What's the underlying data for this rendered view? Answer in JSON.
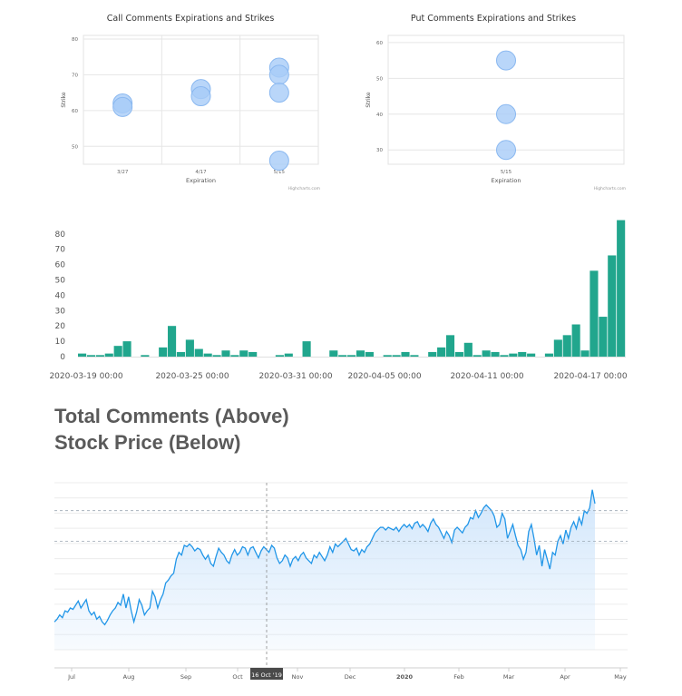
{
  "headings": {
    "line1": "Total Comments (Above)",
    "line2": "Stock Price (Below)"
  },
  "colors": {
    "bubble_fill": "#a8ccf7",
    "bubble_stroke": "#8ab8f0",
    "bar": "#21a68d",
    "price_line": "#2196e8",
    "price_area": "#cfe5fb",
    "grid": "#e6e6e6"
  },
  "chart_data": [
    {
      "type": "scatter",
      "title": "Call Comments Expirations and Strikes",
      "xlabel": "Expiration",
      "ylabel": "Strike",
      "categories": [
        "3/27",
        "4/17",
        "5/15"
      ],
      "yticks": [
        50,
        60,
        70,
        80
      ],
      "ylim": [
        45,
        81
      ],
      "credit": "Highcharts.com",
      "points": [
        {
          "x": "3/27",
          "y": 62
        },
        {
          "x": "3/27",
          "y": 61
        },
        {
          "x": "4/17",
          "y": 66
        },
        {
          "x": "4/17",
          "y": 64
        },
        {
          "x": "5/15",
          "y": 72
        },
        {
          "x": "5/15",
          "y": 70
        },
        {
          "x": "5/15",
          "y": 65
        },
        {
          "x": "5/15",
          "y": 46
        }
      ]
    },
    {
      "type": "scatter",
      "title": "Put Comments Expirations and Strikes",
      "xlabel": "Expiration",
      "ylabel": "Strike",
      "categories": [
        "5/15"
      ],
      "yticks": [
        30,
        40,
        50,
        60
      ],
      "ylim": [
        26,
        62
      ],
      "credit": "Highcharts.com",
      "points": [
        {
          "x": "5/15",
          "y": 55
        },
        {
          "x": "5/15",
          "y": 40
        },
        {
          "x": "5/15",
          "y": 30
        }
      ]
    },
    {
      "type": "bar",
      "title": "",
      "yticks": [
        0,
        10,
        20,
        30,
        40,
        50,
        60,
        70,
        80
      ],
      "ylim": [
        0,
        90
      ],
      "xticks": [
        "2020-03-19 00:00",
        "2020-03-25 00:00",
        "2020-03-31 00:00",
        "2020-04-05 00:00",
        "2020-04-11 00:00",
        "2020-04-17 00:00"
      ],
      "values": [
        2,
        1,
        1,
        2,
        7,
        10,
        0,
        1,
        0,
        6,
        20,
        3,
        11,
        5,
        2,
        1,
        4,
        1,
        4,
        3,
        0,
        0,
        1,
        2,
        0,
        10,
        0,
        0,
        4,
        1,
        1,
        4,
        3,
        0,
        1,
        1,
        3,
        1,
        0,
        3,
        6,
        14,
        3,
        9,
        1,
        4,
        3,
        1,
        2,
        3,
        2,
        0,
        2,
        11,
        14,
        21,
        4,
        56,
        26,
        66,
        89
      ]
    },
    {
      "type": "area",
      "title": "",
      "xticks": [
        "Jul",
        "Aug",
        "Sep",
        "Oct",
        "16 Oct '19",
        "Nov",
        "Dec",
        "2020",
        "Feb",
        "Mar",
        "Apr",
        "May"
      ],
      "crosshair_label": "16 Oct '19",
      "values": [
        50,
        52,
        55,
        53,
        58,
        57,
        60,
        59,
        62,
        65,
        60,
        63,
        66,
        58,
        55,
        57,
        52,
        54,
        50,
        48,
        51,
        55,
        58,
        60,
        64,
        62,
        70,
        60,
        68,
        58,
        50,
        57,
        66,
        62,
        55,
        58,
        60,
        72,
        68,
        60,
        66,
        70,
        78,
        80,
        83,
        85,
        95,
        100,
        98,
        105,
        104,
        106,
        104,
        101,
        103,
        102,
        98,
        95,
        98,
        92,
        90,
        97,
        103,
        100,
        98,
        94,
        92,
        98,
        102,
        98,
        100,
        104,
        103,
        98,
        103,
        104,
        100,
        96,
        101,
        104,
        102,
        100,
        105,
        103,
        96,
        92,
        94,
        98,
        96,
        90,
        95,
        97,
        94,
        98,
        100,
        96,
        94,
        92,
        98,
        96,
        100,
        97,
        94,
        98,
        104,
        100,
        106,
        104,
        106,
        108,
        110,
        106,
        102,
        101,
        103,
        98,
        102,
        100,
        104,
        106,
        110,
        114,
        116,
        118,
        118,
        116,
        118,
        117,
        116,
        118,
        115,
        118,
        120,
        118,
        120,
        117,
        121,
        122,
        118,
        120,
        118,
        115,
        121,
        124,
        120,
        118,
        114,
        110,
        115,
        112,
        107,
        116,
        118,
        116,
        114,
        118,
        120,
        125,
        124,
        130,
        125,
        128,
        132,
        134,
        132,
        130,
        126,
        118,
        120,
        128,
        124,
        110,
        115,
        120,
        112,
        105,
        102,
        95,
        100,
        115,
        120,
        110,
        98,
        105,
        90,
        102,
        95,
        88,
        100,
        98,
        108,
        112,
        106,
        116,
        110,
        118,
        122,
        117,
        125,
        120,
        130,
        128,
        132,
        145,
        135
      ],
      "price_lines": [
        130,
        108
      ]
    }
  ]
}
